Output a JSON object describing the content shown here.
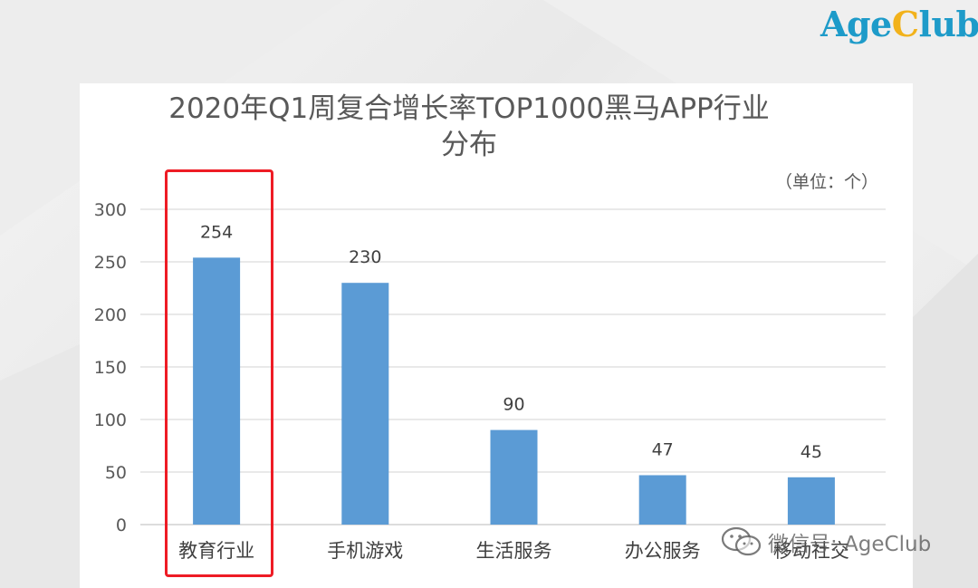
{
  "logo": {
    "part1": "Age",
    "part2": "C",
    "part3": "lub"
  },
  "watermark": {
    "text": "微信号: AgeClub",
    "icon": "wechat-icon"
  },
  "chart_data": {
    "type": "bar",
    "title_line1": "2020年Q1周复合增长率TOP1000黑马APP行业",
    "title_line2": "分布",
    "unit": "（单位：个）",
    "categories": [
      "教育行业",
      "手机游戏",
      "生活服务",
      "办公服务",
      "移动社交"
    ],
    "values": [
      254,
      230,
      90,
      47,
      45
    ],
    "ylim": [
      0,
      300
    ],
    "yticks": [
      0,
      50,
      100,
      150,
      200,
      250,
      300
    ],
    "grid": true,
    "bar_color": "#5b9bd5",
    "highlight_category": "教育行业",
    "highlight_color": "#ee1c25"
  }
}
